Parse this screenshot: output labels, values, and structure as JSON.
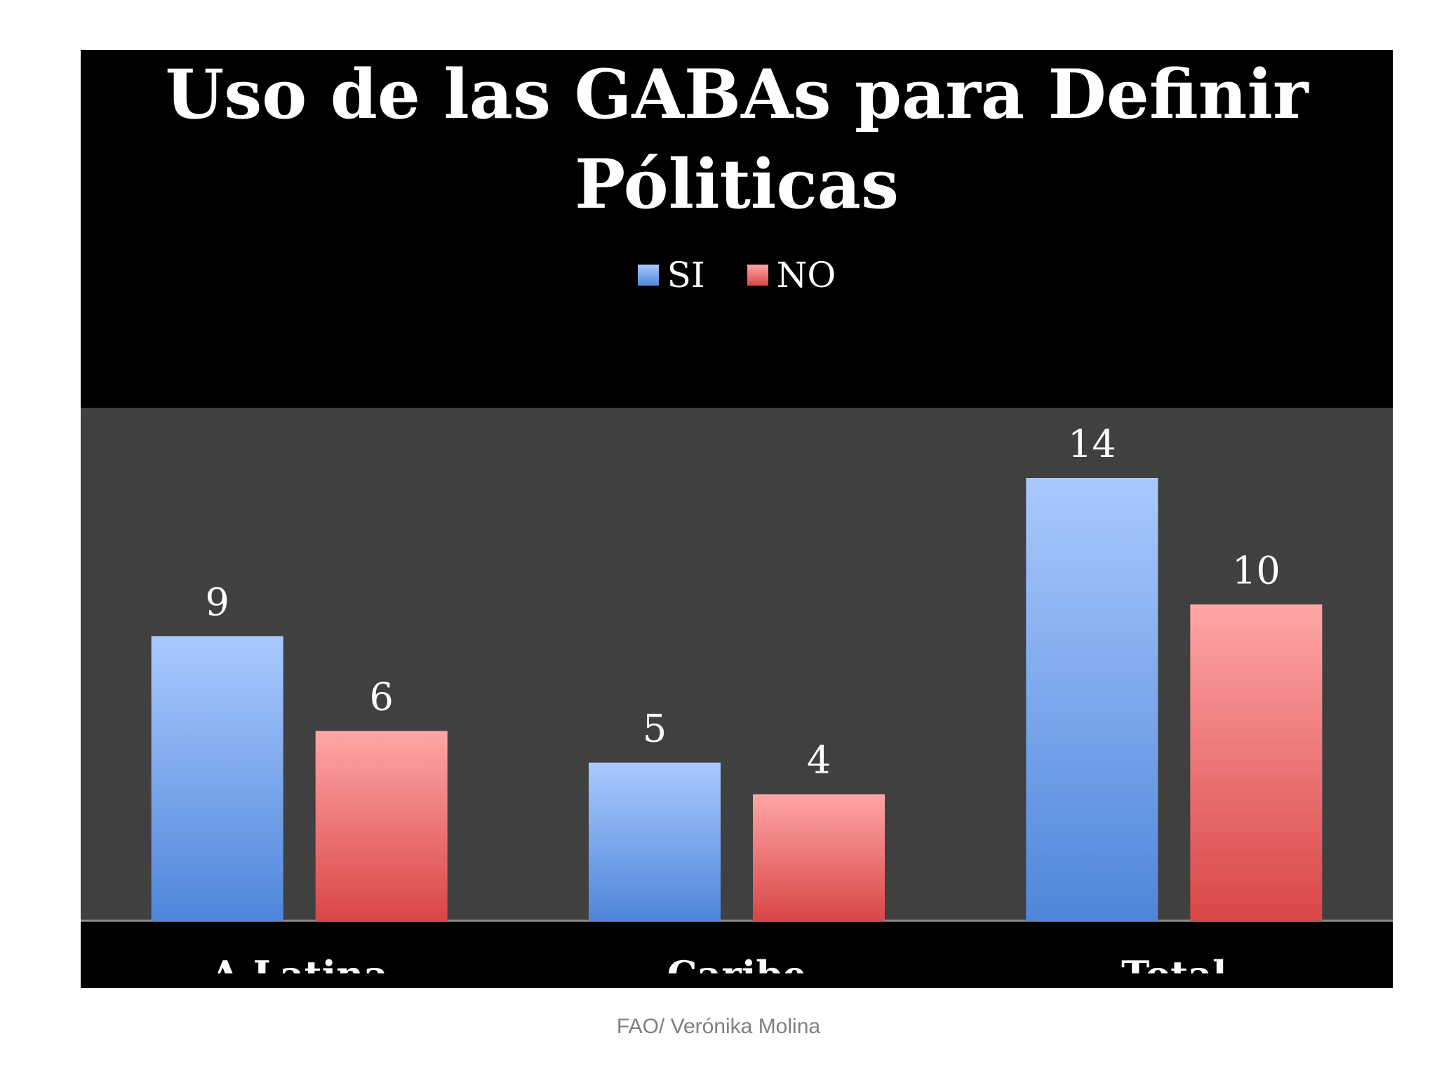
{
  "chart_data": {
    "type": "bar",
    "title": "Uso de las GABAs para Definir Póliticas",
    "title_lines": [
      "Uso de las GABAs para Definir",
      "Póliticas"
    ],
    "categories": [
      "A.Latina",
      "Caribe",
      "Total"
    ],
    "series": [
      {
        "name": "SI",
        "values": [
          9,
          5,
          14
        ],
        "color": "#4f86d9",
        "color_light": "#a9c9ff"
      },
      {
        "name": "NO",
        "values": [
          6,
          4,
          10
        ],
        "color": "#d94646",
        "color_light": "#ffa6a6"
      }
    ],
    "ylim": [
      0,
      14
    ],
    "legend_position": "top",
    "grid": false,
    "data_labels": true,
    "xlabel": "",
    "ylabel": ""
  },
  "colors": {
    "frame_background": "#000000",
    "plot_background": "#404040",
    "text": "#ffffff",
    "caption": "#7f7f7f"
  },
  "caption": "FAO/ Verónika Molina"
}
